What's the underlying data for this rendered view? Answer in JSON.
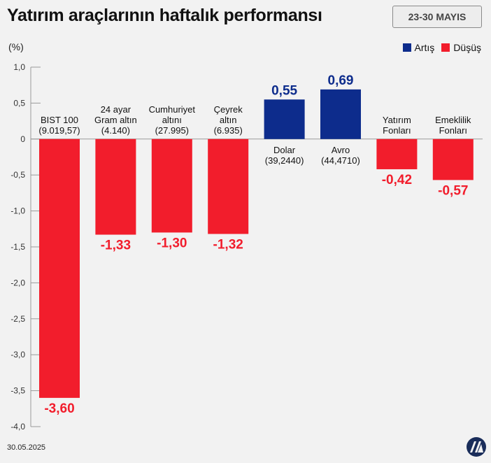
{
  "header": {
    "title": "Yatırım araçlarının haftalık performansı",
    "date_range": "23-30 MAYIS"
  },
  "legend": {
    "increase_label": "Artış",
    "decrease_label": "Düşüş",
    "increase_color": "#0d2c8c",
    "decrease_color": "#f21d2c"
  },
  "chart_data": {
    "type": "bar",
    "ylabel": "(%)",
    "ylim": [
      -4.0,
      1.0
    ],
    "yticks": [
      "1,0",
      "0,5",
      "0",
      "-0,5",
      "-1,0",
      "-1,5",
      "-2,0",
      "-2,5",
      "-3,0",
      "-3,5",
      "-4,0"
    ],
    "ytick_values": [
      1.0,
      0.5,
      0,
      -0.5,
      -1.0,
      -1.5,
      -2.0,
      -2.5,
      -3.0,
      -3.5,
      -4.0
    ],
    "grid": false,
    "legend_position": "top-right",
    "categories": [
      {
        "lines": [
          "BIST 100",
          "(9.019,57)"
        ],
        "value": -3.6,
        "label": "-3,60"
      },
      {
        "lines": [
          "24 ayar",
          "Gram altın",
          "(4.140)"
        ],
        "value": -1.33,
        "label": "-1,33"
      },
      {
        "lines": [
          "Cumhuriyet",
          "altını",
          "(27.995)"
        ],
        "value": -1.3,
        "label": "-1,30"
      },
      {
        "lines": [
          "Çeyrek",
          "altın",
          "(6.935)"
        ],
        "value": -1.32,
        "label": "-1,32"
      },
      {
        "lines": [
          "Dolar",
          "(39,2440)"
        ],
        "value": 0.55,
        "label": "0,55"
      },
      {
        "lines": [
          "Avro",
          "(44,4710)"
        ],
        "value": 0.69,
        "label": "0,69"
      },
      {
        "lines": [
          "Yatırım",
          "Fonları"
        ],
        "value": -0.42,
        "label": "-0,42"
      },
      {
        "lines": [
          "Emeklilik",
          "Fonları"
        ],
        "value": -0.57,
        "label": "-0,57"
      }
    ]
  },
  "footer": {
    "date": "30.05.2025",
    "logo_text": "AA"
  }
}
